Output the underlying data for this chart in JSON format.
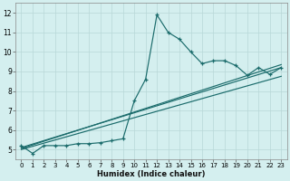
{
  "xlabel": "Humidex (Indice chaleur)",
  "xlim": [
    -0.5,
    23.5
  ],
  "ylim": [
    4.5,
    12.5
  ],
  "yticks": [
    5,
    6,
    7,
    8,
    9,
    10,
    11,
    12
  ],
  "xticks": [
    0,
    1,
    2,
    3,
    4,
    5,
    6,
    7,
    8,
    9,
    10,
    11,
    12,
    13,
    14,
    15,
    16,
    17,
    18,
    19,
    20,
    21,
    22,
    23
  ],
  "xtick_labels": [
    "0",
    "1",
    "2",
    "3",
    "4",
    "5",
    "6",
    "7",
    "8",
    "9",
    "10",
    "11",
    "12",
    "13",
    "14",
    "15",
    "16",
    "17",
    "18",
    "19",
    "20",
    "21",
    "22",
    "23"
  ],
  "line_color": "#1a6b6b",
  "bg_color": "#d4efef",
  "grid_color": "#b8d8d8",
  "line1_x": [
    0,
    1,
    2,
    3,
    4,
    5,
    6,
    7,
    8,
    9,
    10,
    11,
    12,
    13,
    14,
    15,
    16,
    17,
    18,
    19,
    20,
    21,
    22,
    23
  ],
  "line1_y": [
    5.2,
    4.8,
    5.2,
    5.2,
    5.2,
    5.3,
    5.3,
    5.35,
    5.45,
    5.55,
    7.5,
    8.6,
    11.9,
    11.0,
    10.65,
    10.0,
    9.4,
    9.55,
    9.55,
    9.3,
    8.8,
    9.2,
    8.85,
    9.2
  ],
  "line2_x": [
    0,
    23
  ],
  "line2_y": [
    5.1,
    9.2
  ],
  "line3_x": [
    0,
    23
  ],
  "line3_y": [
    5.05,
    9.35
  ],
  "line4_x": [
    0,
    23
  ],
  "line4_y": [
    5.0,
    8.75
  ]
}
